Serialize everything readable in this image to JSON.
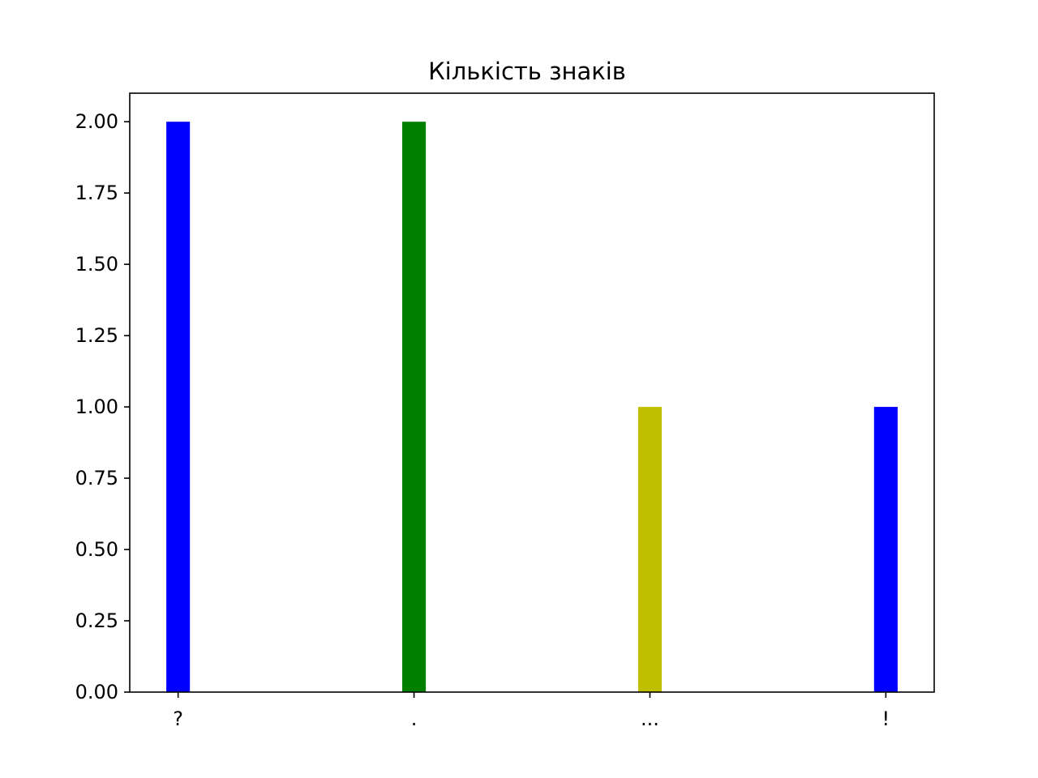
{
  "chart_data": {
    "type": "bar",
    "title": "Кількість знаків",
    "xlabel": "",
    "ylabel": "",
    "categories": [
      "?",
      ".",
      "...",
      "!"
    ],
    "values": [
      2,
      2,
      1,
      1
    ],
    "colors": [
      "#0000ff",
      "#008000",
      "#bfbf00",
      "#0000ff"
    ],
    "ylim": [
      0,
      2.1
    ],
    "yticks": [
      0.0,
      0.25,
      0.5,
      0.75,
      1.0,
      1.25,
      1.5,
      1.75,
      2.0
    ],
    "ytick_labels": [
      "0.00",
      "0.25",
      "0.50",
      "0.75",
      "1.00",
      "1.25",
      "1.50",
      "1.75",
      "2.00"
    ],
    "grid": false,
    "legend": "none"
  }
}
